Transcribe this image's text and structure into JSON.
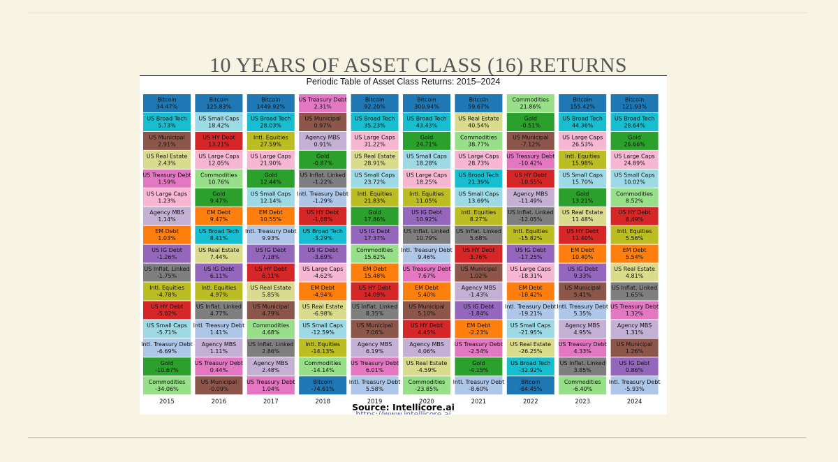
{
  "slide": {
    "title": "10 YEARS OF ASSET CLASS (16) RETURNS"
  },
  "chart_card": {
    "source_text": "Source: Intellicore.ai",
    "source_url": "https://www.intellicore.ai"
  },
  "colors": {
    "Bitcoin": "#1f77b4",
    "US Broad Tech": "#17becf",
    "US Municipal": "#8c564b",
    "US Real Estate": "#dbdb8d",
    "US Treasury Debt": "#e377c2",
    "US Large Caps": "#f7b6d2",
    "Agency MBS": "#c5b0d5",
    "EM Debt": "#ff7f0e",
    "US IG Debt": "#9467bd",
    "US Inflat. Linked": "#7f7f7f",
    "Intl. Equities": "#bcbd22",
    "US HY Debt": "#d62728",
    "US Small Caps": "#9edae5",
    "Intl. Treasury Debt": "#aec7e8",
    "Gold": "#2ca02c",
    "Commodities": "#98df8a"
  },
  "chart_data": {
    "type": "table",
    "title": "Periodic Table of Asset Class Returns: 2015–2024",
    "years": [
      "2015",
      "2016",
      "2017",
      "2018",
      "2019",
      "2020",
      "2021",
      "2022",
      "2023",
      "2024"
    ],
    "columns": [
      [
        [
          "Bitcoin",
          "34.47%"
        ],
        [
          "US Broad Tech",
          "5.73%"
        ],
        [
          "US Municipal",
          "2.91%"
        ],
        [
          "US Real Estate",
          "2.43%"
        ],
        [
          "US Treasury Debt",
          "1.59%"
        ],
        [
          "US Large Caps",
          "1.23%"
        ],
        [
          "Agency MBS",
          "1.14%"
        ],
        [
          "EM Debt",
          "1.03%"
        ],
        [
          "US IG Debt",
          "-1.26%"
        ],
        [
          "US Inflat. Linked",
          "-1.75%"
        ],
        [
          "Intl. Equities",
          "-4.78%"
        ],
        [
          "US HY Debt",
          "-5.02%"
        ],
        [
          "US Small Caps",
          "-5.71%"
        ],
        [
          "Intl. Treasury Debt",
          "-6.69%"
        ],
        [
          "Gold",
          "-10.67%"
        ],
        [
          "Commodities",
          "-34.06%"
        ]
      ],
      [
        [
          "Bitcoin",
          "125.83%"
        ],
        [
          "US Small Caps",
          "18.42%"
        ],
        [
          "US HY Debt",
          "13.21%"
        ],
        [
          "US Large Caps",
          "12.05%"
        ],
        [
          "Commodities",
          "10.76%"
        ],
        [
          "Gold",
          "9.47%"
        ],
        [
          "EM Debt",
          "9.47%"
        ],
        [
          "US Broad Tech",
          "8.41%"
        ],
        [
          "US Real Estate",
          "7.44%"
        ],
        [
          "US IG Debt",
          "6.11%"
        ],
        [
          "Intl. Equities",
          "4.97%"
        ],
        [
          "US Inflat. Linked",
          "4.77%"
        ],
        [
          "Intl. Treasury Debt",
          "1.41%"
        ],
        [
          "Agency MBS",
          "1.11%"
        ],
        [
          "US Treasury Debt",
          "0.44%"
        ],
        [
          "US Municipal",
          "-0.09%"
        ]
      ],
      [
        [
          "Bitcoin",
          "1449.92%"
        ],
        [
          "US Broad Tech",
          "28.03%"
        ],
        [
          "Intl. Equities",
          "27.59%"
        ],
        [
          "US Large Caps",
          "21.90%"
        ],
        [
          "Gold",
          "12.44%"
        ],
        [
          "US Small Caps",
          "12.14%"
        ],
        [
          "EM Debt",
          "10.55%"
        ],
        [
          "Intl. Treasury Debt",
          "9.93%"
        ],
        [
          "US IG Debt",
          "7.18%"
        ],
        [
          "US HY Debt",
          "6.11%"
        ],
        [
          "US Real Estate",
          "5.85%"
        ],
        [
          "US Municipal",
          "4.79%"
        ],
        [
          "Commodities",
          "4.68%"
        ],
        [
          "US Inflat. Linked",
          "2.86%"
        ],
        [
          "Agency MBS",
          "2.48%"
        ],
        [
          "US Treasury Debt",
          "1.04%"
        ]
      ],
      [
        [
          "US Treasury Debt",
          "2.31%"
        ],
        [
          "US Municipal",
          "0.97%"
        ],
        [
          "Agency MBS",
          "0.91%"
        ],
        [
          "Gold",
          "-0.87%"
        ],
        [
          "US Inflat. Linked",
          "-1.22%"
        ],
        [
          "Intl. Treasury Debt",
          "-1.29%"
        ],
        [
          "US HY Debt",
          "-1.68%"
        ],
        [
          "US Broad Tech",
          "-3.29%"
        ],
        [
          "US IG Debt",
          "-3.69%"
        ],
        [
          "US Large Caps",
          "-4.62%"
        ],
        [
          "EM Debt",
          "-4.94%"
        ],
        [
          "US Real Estate",
          "-6.98%"
        ],
        [
          "US Small Caps",
          "-12.59%"
        ],
        [
          "Intl. Equities",
          "-14.13%"
        ],
        [
          "Commodities",
          "-14.14%"
        ],
        [
          "Bitcoin",
          "-74.61%"
        ]
      ],
      [
        [
          "Bitcoin",
          "92.20%"
        ],
        [
          "US Broad Tech",
          "35.23%"
        ],
        [
          "US Large Caps",
          "31.22%"
        ],
        [
          "US Real Estate",
          "28.91%"
        ],
        [
          "US Small Caps",
          "23.72%"
        ],
        [
          "Intl. Equities",
          "21.83%"
        ],
        [
          "Gold",
          "17.86%"
        ],
        [
          "US IG Debt",
          "17.37%"
        ],
        [
          "Commodities",
          "15.62%"
        ],
        [
          "EM Debt",
          "15.48%"
        ],
        [
          "US HY Debt",
          "14.09%"
        ],
        [
          "US Inflat. Linked",
          "8.35%"
        ],
        [
          "US Municipal",
          "7.06%"
        ],
        [
          "Agency MBS",
          "6.19%"
        ],
        [
          "US Treasury Debt",
          "6.01%"
        ],
        [
          "Intl. Treasury Debt",
          "5.58%"
        ]
      ],
      [
        [
          "Bitcoin",
          "300.94%"
        ],
        [
          "US Broad Tech",
          "43.43%"
        ],
        [
          "Gold",
          "24.71%"
        ],
        [
          "US Small Caps",
          "18.28%"
        ],
        [
          "US Large Caps",
          "18.25%"
        ],
        [
          "Intl. Equities",
          "11.05%"
        ],
        [
          "US IG Debt",
          "10.92%"
        ],
        [
          "US Inflat. Linked",
          "10.79%"
        ],
        [
          "Intl. Treasury Debt",
          "9.46%"
        ],
        [
          "US Treasury Debt",
          "7.67%"
        ],
        [
          "EM Debt",
          "5.40%"
        ],
        [
          "US Municipal",
          "5.10%"
        ],
        [
          "US HY Debt",
          "4.45%"
        ],
        [
          "Agency MBS",
          "4.06%"
        ],
        [
          "US Real Estate",
          "-4.59%"
        ],
        [
          "Commodities",
          "-23.85%"
        ]
      ],
      [
        [
          "Bitcoin",
          "59.67%"
        ],
        [
          "US Real Estate",
          "40.54%"
        ],
        [
          "Commodities",
          "38.77%"
        ],
        [
          "US Large Caps",
          "28.73%"
        ],
        [
          "US Broad Tech",
          "21.39%"
        ],
        [
          "US Small Caps",
          "13.69%"
        ],
        [
          "Intl. Equities",
          "8.27%"
        ],
        [
          "US Inflat. Linked",
          "5.68%"
        ],
        [
          "US HY Debt",
          "3.76%"
        ],
        [
          "US Municipal",
          "1.02%"
        ],
        [
          "Agency MBS",
          "-1.43%"
        ],
        [
          "US IG Debt",
          "-1.84%"
        ],
        [
          "EM Debt",
          "-2.23%"
        ],
        [
          "US Treasury Debt",
          "-2.54%"
        ],
        [
          "Gold",
          "-4.15%"
        ],
        [
          "Intl. Treasury Debt",
          "-8.60%"
        ]
      ],
      [
        [
          "Commodities",
          "21.86%"
        ],
        [
          "Gold",
          "-0.51%"
        ],
        [
          "US Municipal",
          "-7.12%"
        ],
        [
          "US Treasury Debt",
          "-10.42%"
        ],
        [
          "US HY Debt",
          "-10.55%"
        ],
        [
          "Agency MBS",
          "-11.49%"
        ],
        [
          "US Inflat. Linked",
          "-12.05%"
        ],
        [
          "Intl. Equities",
          "-15.82%"
        ],
        [
          "US IG Debt",
          "-17.25%"
        ],
        [
          "US Large Caps",
          "-18.31%"
        ],
        [
          "EM Debt",
          "-18.42%"
        ],
        [
          "Intl. Treasury Debt",
          "-19.21%"
        ],
        [
          "US Small Caps",
          "-21.95%"
        ],
        [
          "US Real Estate",
          "-26.25%"
        ],
        [
          "US Broad Tech",
          "-32.92%"
        ],
        [
          "Bitcoin",
          "-64.45%"
        ]
      ],
      [
        [
          "Bitcoin",
          "155.42%"
        ],
        [
          "US Broad Tech",
          "44.36%"
        ],
        [
          "US Large Caps",
          "26.53%"
        ],
        [
          "Intl. Equities",
          "15.98%"
        ],
        [
          "US Small Caps",
          "15.70%"
        ],
        [
          "Gold",
          "13.21%"
        ],
        [
          "US Real Estate",
          "11.48%"
        ],
        [
          "US HY Debt",
          "11.40%"
        ],
        [
          "EM Debt",
          "10.40%"
        ],
        [
          "US IG Debt",
          "9.33%"
        ],
        [
          "US Municipal",
          "5.41%"
        ],
        [
          "Intl. Treasury Debt",
          "5.35%"
        ],
        [
          "Agency MBS",
          "4.95%"
        ],
        [
          "US Treasury Debt",
          "4.33%"
        ],
        [
          "US Inflat. Linked",
          "3.85%"
        ],
        [
          "Commodities",
          "-6.40%"
        ]
      ],
      [
        [
          "Bitcoin",
          "121.93%"
        ],
        [
          "US Broad Tech",
          "28.64%"
        ],
        [
          "Gold",
          "26.66%"
        ],
        [
          "US Large Caps",
          "24.89%"
        ],
        [
          "US Small Caps",
          "10.02%"
        ],
        [
          "Commodities",
          "8.52%"
        ],
        [
          "US HY Debt",
          "8.49%"
        ],
        [
          "Intl. Equities",
          "5.56%"
        ],
        [
          "EM Debt",
          "5.54%"
        ],
        [
          "US Real Estate",
          "4.81%"
        ],
        [
          "US Inflat. Linked",
          "1.65%"
        ],
        [
          "US Treasury Debt",
          "1.32%"
        ],
        [
          "Agency MBS",
          "1.31%"
        ],
        [
          "US Municipal",
          "1.26%"
        ],
        [
          "US IG Debt",
          "0.86%"
        ],
        [
          "Intl. Treasury Debt",
          "-5.93%"
        ]
      ]
    ]
  }
}
